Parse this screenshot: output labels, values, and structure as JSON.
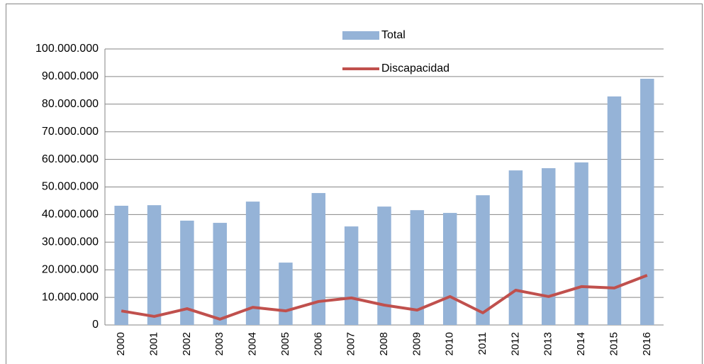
{
  "chart_data": {
    "type": "bar_line",
    "categories": [
      "2000",
      "2001",
      "2002",
      "2003",
      "2004",
      "2005",
      "2006",
      "2007",
      "2008",
      "2009",
      "2010",
      "2011",
      "2012",
      "2013",
      "2014",
      "2015",
      "2016"
    ],
    "series": [
      {
        "name": "Total",
        "type": "bar",
        "color": "#95b3d7",
        "values": [
          43200000,
          43400000,
          37800000,
          37000000,
          44700000,
          22600000,
          47800000,
          35700000,
          42900000,
          41600000,
          40600000,
          47000000,
          56000000,
          56800000,
          58900000,
          82800000,
          89200000
        ]
      },
      {
        "name": "Discapacidad",
        "type": "line",
        "color": "#c0504d",
        "values": [
          5100000,
          3100000,
          5900000,
          2100000,
          6400000,
          5100000,
          8500000,
          9800000,
          7200000,
          5400000,
          10300000,
          4400000,
          12600000,
          10300000,
          13900000,
          13400000,
          18000000
        ]
      }
    ],
    "ylim": [
      0,
      100000000
    ],
    "yticks": [
      0,
      {
        "value": 10000000,
        "label": "10.000.000"
      },
      {
        "value": 20000000,
        "label": "20.000.000"
      },
      {
        "value": 30000000,
        "label": "30.000.000"
      },
      {
        "value": 40000000,
        "label": "40.000.000"
      },
      {
        "value": 50000000,
        "label": "50.000.000"
      },
      {
        "value": 60000000,
        "label": "60.000.000"
      },
      {
        "value": 70000000,
        "label": "70.000.000"
      },
      {
        "value": 80000000,
        "label": "80.000.000"
      },
      {
        "value": 90000000,
        "label": "90.000.000"
      },
      {
        "value": 100000000,
        "label": "100.000.000"
      }
    ],
    "grid": true,
    "legend": "top"
  }
}
